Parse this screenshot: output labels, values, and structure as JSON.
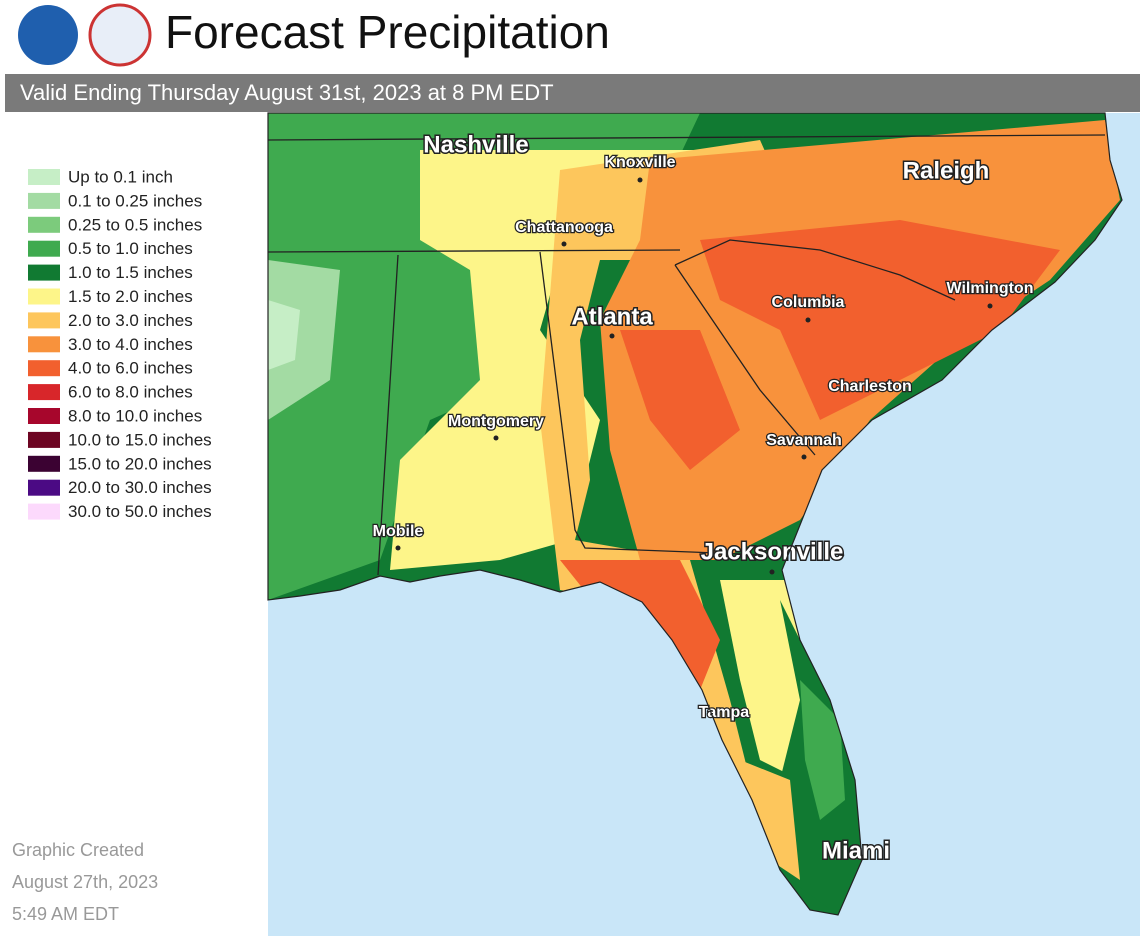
{
  "header": {
    "title": "Forecast Precipitation",
    "subtitle": "Valid Ending Thursday August 31st, 2023 at 8 PM EDT"
  },
  "legend": {
    "items": [
      {
        "label": "Up to 0.1 inch",
        "color": "#c6eec6"
      },
      {
        "label": "0.1 to 0.25 inches",
        "color": "#a3dba3"
      },
      {
        "label": "0.25 to 0.5 inches",
        "color": "#7ccb7c"
      },
      {
        "label": "0.5 to 1.0 inches",
        "color": "#3faa4f"
      },
      {
        "label": "1.0 to 1.5 inches",
        "color": "#117a32"
      },
      {
        "label": "1.5 to 2.0 inches",
        "color": "#fdf589"
      },
      {
        "label": "2.0 to 3.0 inches",
        "color": "#fdc65c"
      },
      {
        "label": "3.0 to 4.0 inches",
        "color": "#f8923c"
      },
      {
        "label": "4.0 to 6.0 inches",
        "color": "#f2602e"
      },
      {
        "label": "6.0 to 8.0 inches",
        "color": "#d8262a"
      },
      {
        "label": "8.0 to 10.0 inches",
        "color": "#a7062c"
      },
      {
        "label": "10.0 to 15.0 inches",
        "color": "#6d0522"
      },
      {
        "label": "15.0 to 20.0 inches",
        "color": "#3b0232"
      },
      {
        "label": "20.0 to 30.0 inches",
        "color": "#4b0a84"
      },
      {
        "label": "30.0 to 50.0 inches",
        "color": "#fcd9fc"
      }
    ]
  },
  "cities": [
    {
      "label": "Nashville"
    },
    {
      "label": "Knoxville"
    },
    {
      "label": "Raleigh"
    },
    {
      "label": "Chattanooga"
    },
    {
      "label": "Atlanta"
    },
    {
      "label": "Columbia"
    },
    {
      "label": "Wilmington"
    },
    {
      "label": "Charleston"
    },
    {
      "label": "Montgomery"
    },
    {
      "label": "Savannah"
    },
    {
      "label": "Mobile"
    },
    {
      "label": "Jacksonville"
    },
    {
      "label": "Tampa"
    },
    {
      "label": "Miami"
    }
  ],
  "footer": {
    "lines": [
      "Graphic Created",
      "August 27th, 2023",
      "5:49 AM EDT"
    ]
  }
}
